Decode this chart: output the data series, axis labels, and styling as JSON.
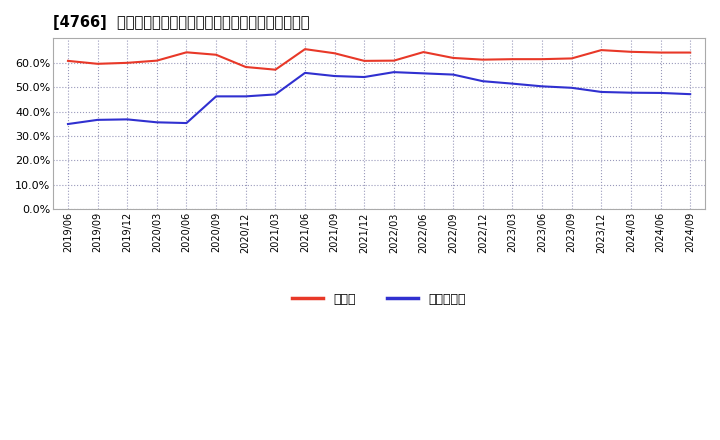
{
  "title": "[4766]  現須金、有利子負債の総資産に対する比率の推移",
  "x_labels": [
    "2019/06",
    "2019/09",
    "2019/12",
    "2020/03",
    "2020/06",
    "2020/09",
    "2020/12",
    "2021/03",
    "2021/06",
    "2021/09",
    "2021/12",
    "2022/03",
    "2022/06",
    "2022/09",
    "2022/12",
    "2023/03",
    "2023/06",
    "2023/09",
    "2023/12",
    "2024/03",
    "2024/06",
    "2024/09"
  ],
  "cash_values": [
    0.607,
    0.595,
    0.599,
    0.608,
    0.642,
    0.632,
    0.582,
    0.571,
    0.655,
    0.638,
    0.607,
    0.608,
    0.643,
    0.619,
    0.612,
    0.614,
    0.614,
    0.617,
    0.651,
    0.644,
    0.641,
    0.641
  ],
  "debt_values": [
    0.349,
    0.366,
    0.368,
    0.356,
    0.353,
    0.462,
    0.462,
    0.47,
    0.558,
    0.545,
    0.541,
    0.561,
    0.556,
    0.551,
    0.524,
    0.514,
    0.503,
    0.497,
    0.48,
    0.477,
    0.476,
    0.471
  ],
  "cash_color": "#e83828",
  "debt_color": "#3030d0",
  "bg_color": "#ffffff",
  "plot_bg_color": "#ffffff",
  "grid_color": "#9999bb",
  "legend_cash": "現須金",
  "legend_debt": "有利子負債",
  "ylim": [
    0.0,
    0.7
  ],
  "yticks": [
    0.0,
    0.1,
    0.2,
    0.3,
    0.4,
    0.5,
    0.6
  ]
}
